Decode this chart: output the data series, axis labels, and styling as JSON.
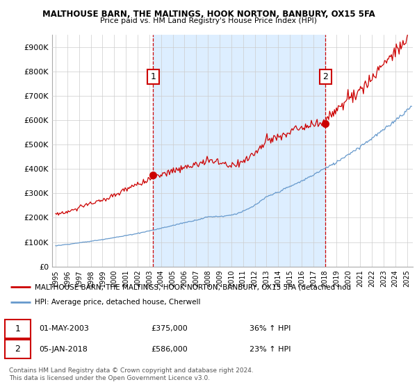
{
  "title1": "MALTHOUSE BARN, THE MALTINGS, HOOK NORTON, BANBURY, OX15 5FA",
  "title2": "Price paid vs. HM Land Registry's House Price Index (HPI)",
  "ylabel_ticks": [
    "£0",
    "£100K",
    "£200K",
    "£300K",
    "£400K",
    "£500K",
    "£600K",
    "£700K",
    "£800K",
    "£900K"
  ],
  "ytick_vals": [
    0,
    100000,
    200000,
    300000,
    400000,
    500000,
    600000,
    700000,
    800000,
    900000
  ],
  "sale1_date_x": 2003.33,
  "sale1_price": 375000,
  "sale1_label": "1",
  "sale2_date_x": 2018.04,
  "sale2_price": 586000,
  "sale2_label": "2",
  "legend_line1": "MALTHOUSE BARN, THE MALTINGS, HOOK NORTON, BANBURY, OX15 5FA (detached hou",
  "legend_line2": "HPI: Average price, detached house, Cherwell",
  "table_row1": [
    "1",
    "01-MAY-2003",
    "£375,000",
    "36% ↑ HPI"
  ],
  "table_row2": [
    "2",
    "05-JAN-2018",
    "£586,000",
    "23% ↑ HPI"
  ],
  "footer": "Contains HM Land Registry data © Crown copyright and database right 2024.\nThis data is licensed under the Open Government Licence v3.0.",
  "line_color_red": "#cc0000",
  "line_color_blue": "#6699cc",
  "shade_color": "#ddeeff",
  "background_color": "#ffffff",
  "grid_color": "#cccccc",
  "xmin": 1995,
  "xmax": 2025.5,
  "ymin": 0,
  "ymax": 950000
}
